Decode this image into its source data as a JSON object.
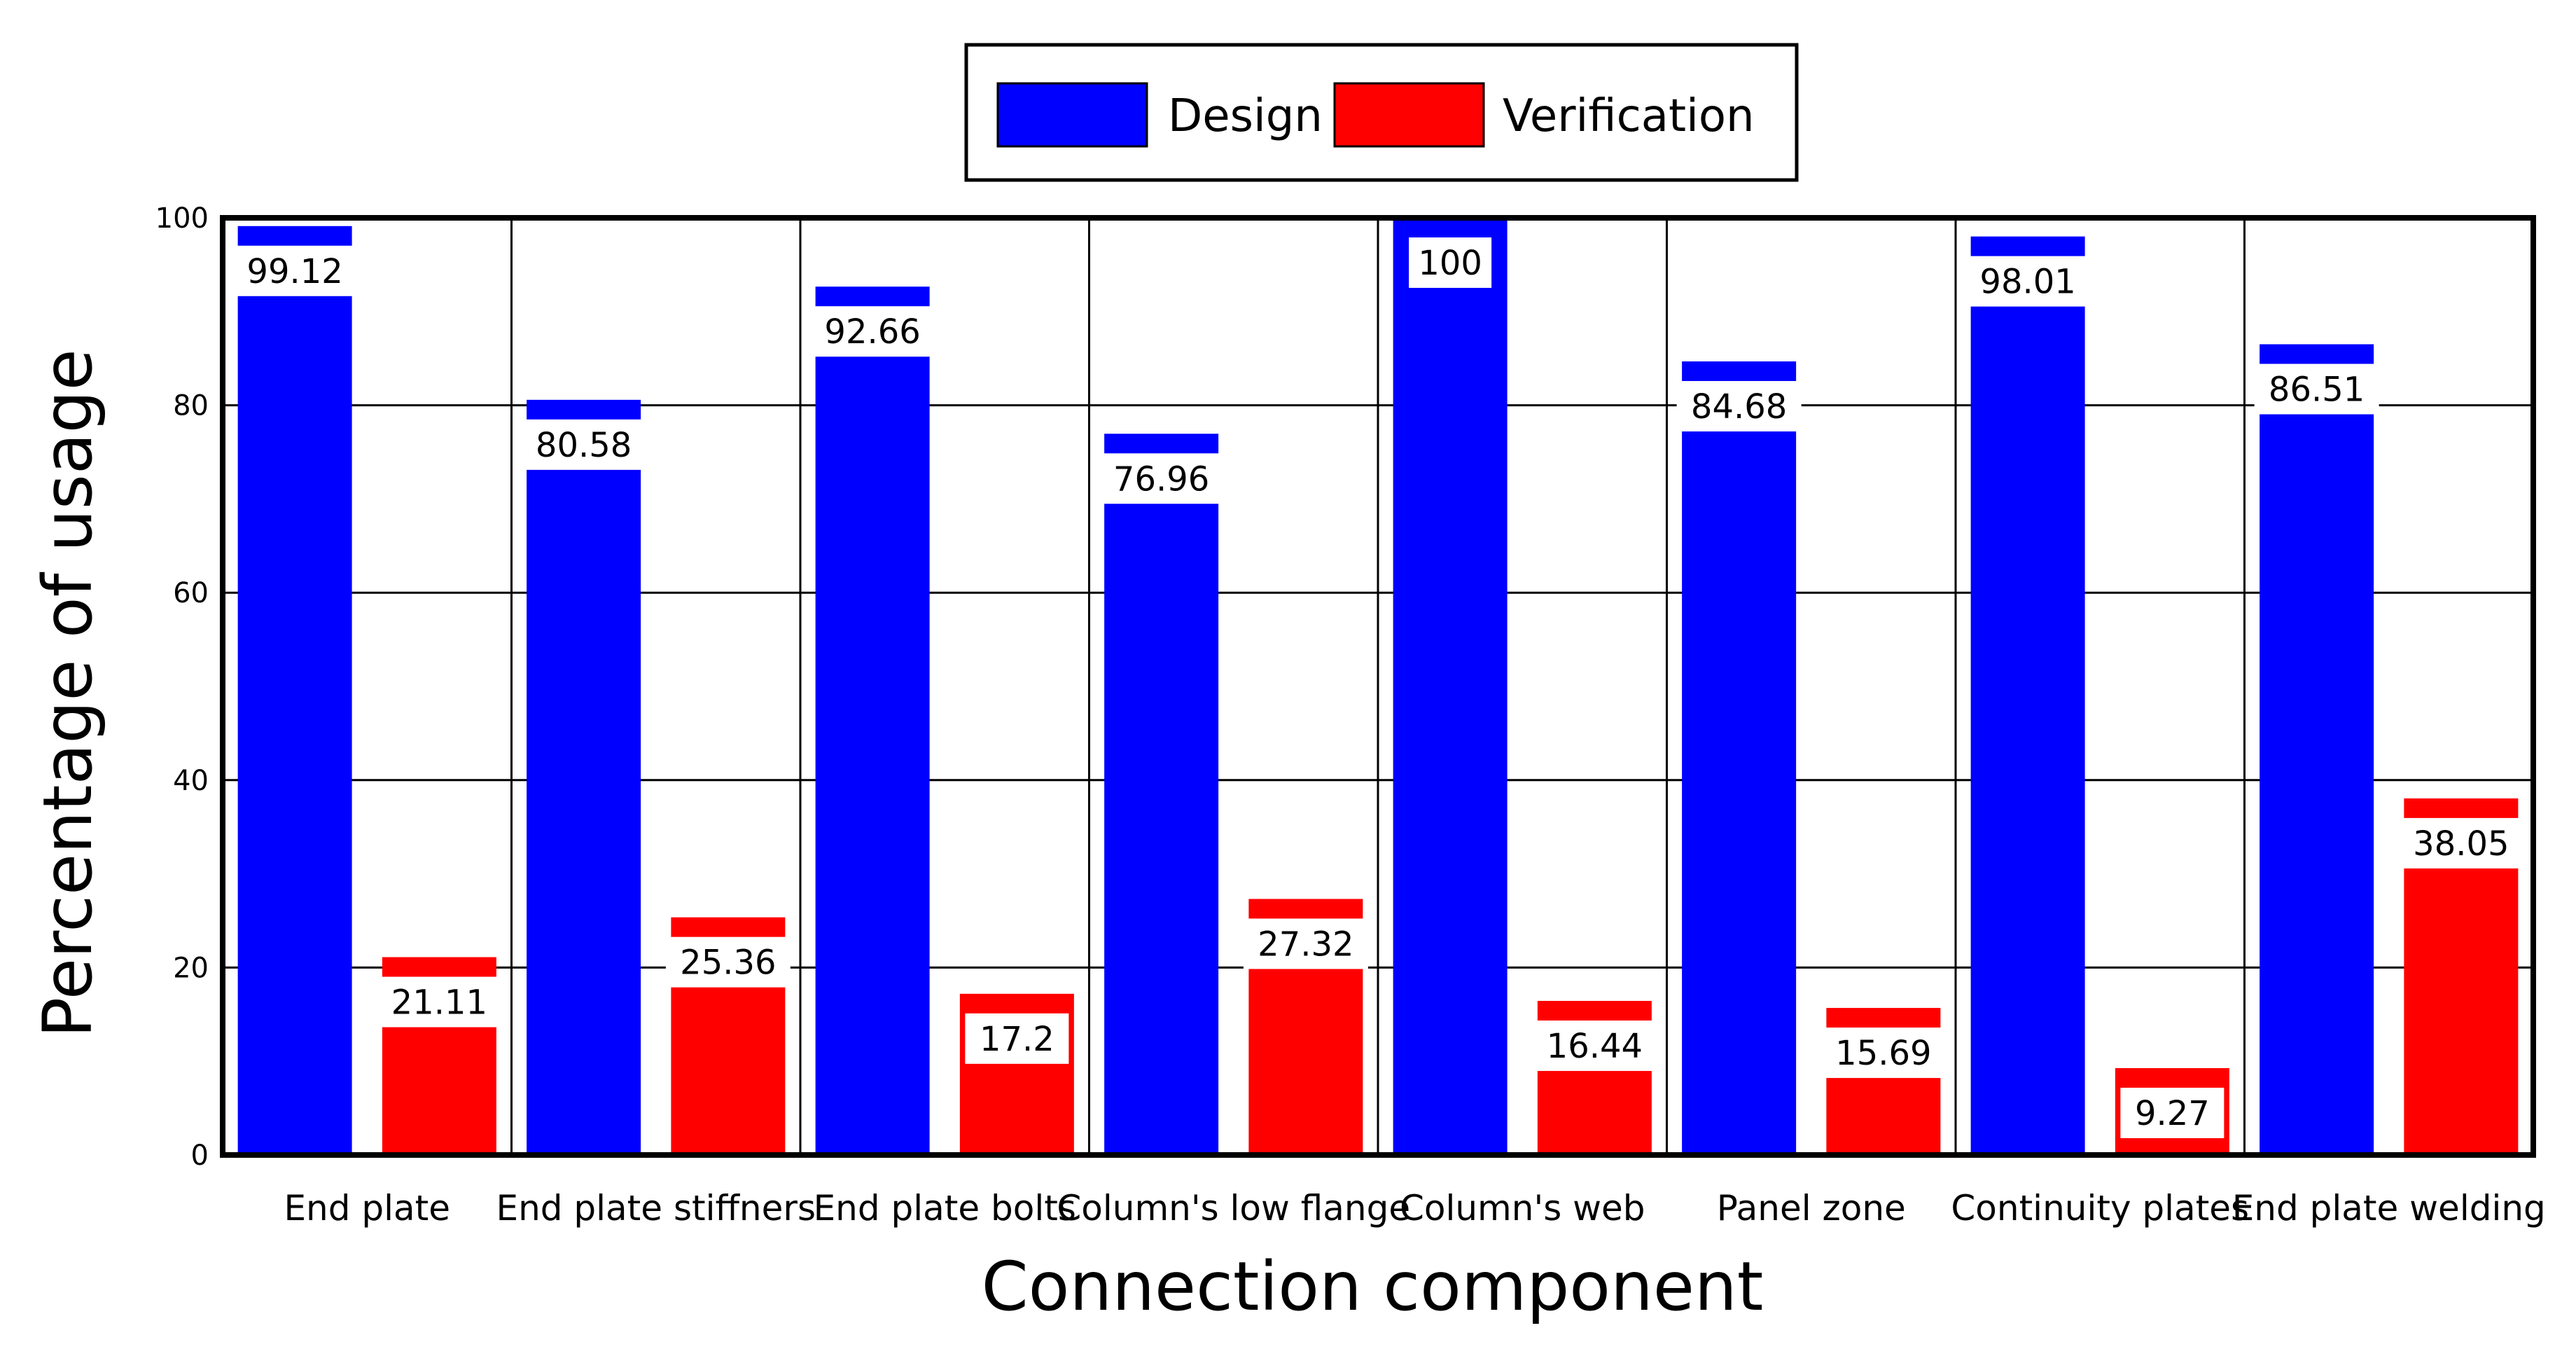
{
  "chart_data": {
    "type": "bar",
    "xlabel": "Connection component",
    "ylabel": "Percentage of usage",
    "ylim": [
      0,
      100
    ],
    "yticks": [
      0,
      20,
      40,
      60,
      80,
      100
    ],
    "grid": true,
    "legend_position": "top-center",
    "categories": [
      "End plate",
      "End plate stiffners",
      "End plate bolts",
      "Column's low flange",
      "Column's web",
      "Panel zone",
      "Continuity plates",
      "End plate welding"
    ],
    "series": [
      {
        "name": "Design",
        "color": "#0000ff",
        "values": [
          99.12,
          80.58,
          92.66,
          76.96,
          100,
          84.68,
          98.01,
          86.51
        ],
        "labels": [
          "99.12",
          "80.58",
          "92.66",
          "76.96",
          "100",
          "84.68",
          "98.01",
          "86.51"
        ]
      },
      {
        "name": "Verification",
        "color": "#ff0000",
        "values": [
          21.11,
          25.36,
          17.2,
          27.32,
          16.44,
          15.69,
          9.27,
          38.05
        ],
        "labels": [
          "21.11",
          "25.36",
          "17.2",
          "27.32",
          "16.44",
          "15.69",
          "9.27",
          "38.05"
        ]
      }
    ]
  }
}
